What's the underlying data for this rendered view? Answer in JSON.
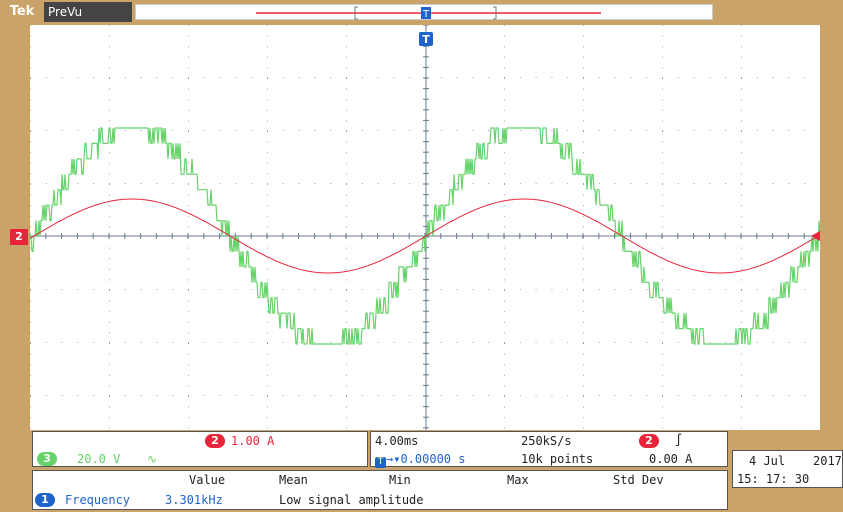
{
  "header": {
    "logo": "Tek",
    "mode": "PreVu"
  },
  "channel_marker": "2",
  "panels": {
    "ch2": {
      "badge": "2",
      "scale": "1.00 A"
    },
    "ch3": {
      "badge": "3",
      "scale": "20.0 V",
      "coupling": "∿"
    },
    "timebase": {
      "time_div": "4.00ms",
      "sample_rate": "250kS/s",
      "trigger_badge": "2",
      "trigger_slope": "∫"
    },
    "position": {
      "icon": "T",
      "value": "▾0.00000 s",
      "record_length": "10k points",
      "trigger_level": "0.00 A"
    }
  },
  "measurements": {
    "headers": [
      "Value",
      "Mean",
      "Min",
      "Max",
      "Std Dev"
    ],
    "row": {
      "badge": "1",
      "name": "Frequency",
      "value": "3.301kHz",
      "note": "Low signal amplitude"
    }
  },
  "datetime": {
    "date": "4 Jul",
    "year": "2017",
    "time": "15: 17: 30"
  },
  "colors": {
    "ch1": "#1f63c8",
    "ch2": "#e8253a",
    "ch3": "#66d36a",
    "frame": "#c9a36a"
  }
}
